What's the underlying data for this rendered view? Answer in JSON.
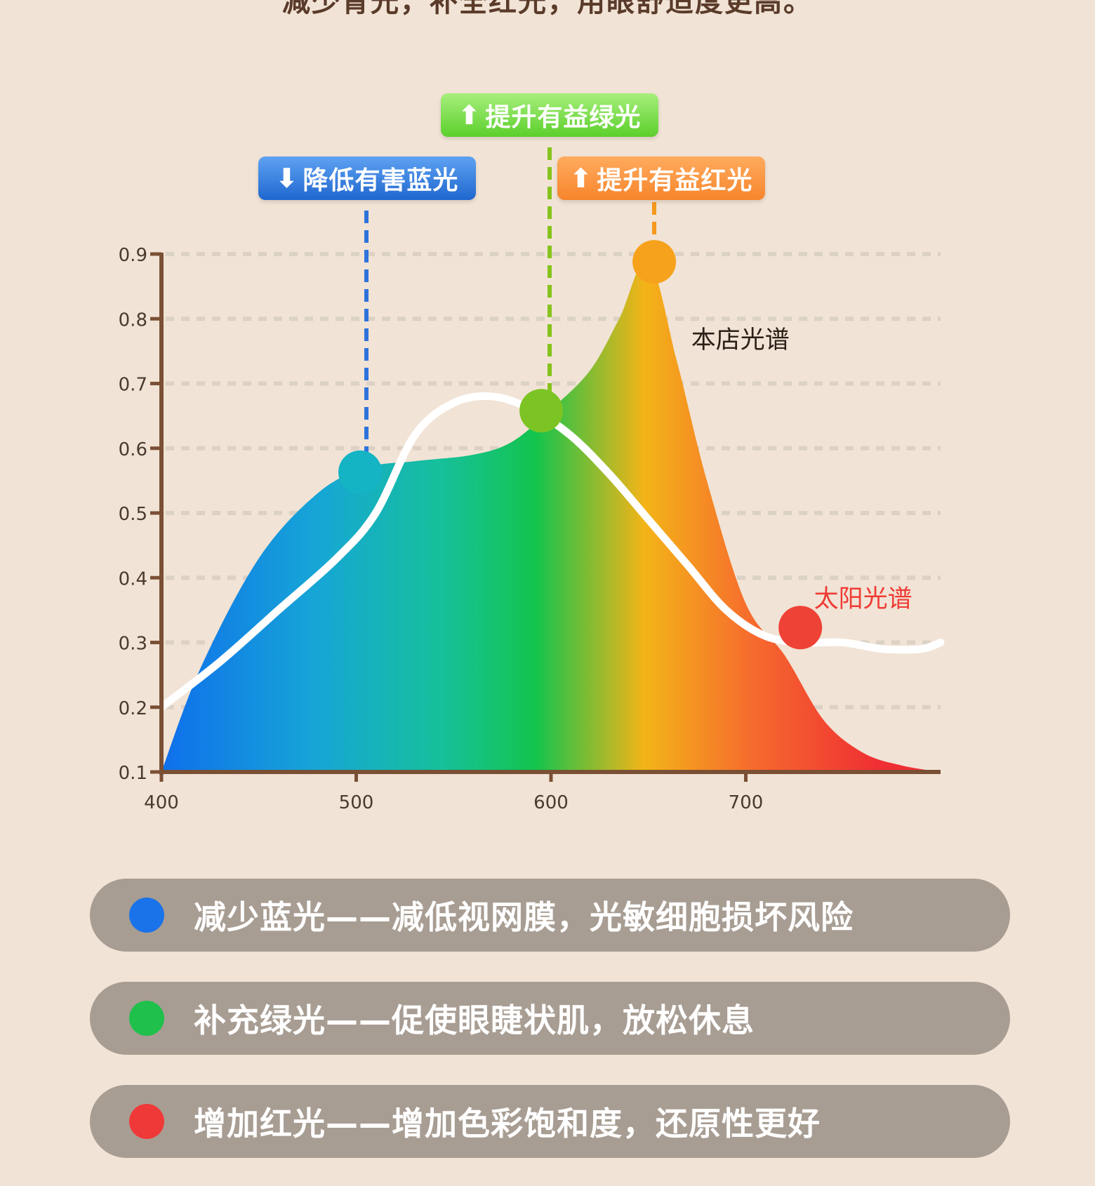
{
  "page": {
    "headline": "减少青光，补全红光，用眼舒适度更高。"
  },
  "tags": {
    "blue": "降低有害蓝光",
    "green": "提升有益绿光",
    "orange": "提升有益红光"
  },
  "chart_data": {
    "type": "area",
    "title": "",
    "xlabel": "",
    "ylabel": "",
    "x_ticks": [
      400,
      500,
      600,
      700
    ],
    "y_ticks": [
      0.1,
      0.2,
      0.3,
      0.4,
      0.5,
      0.6,
      0.7,
      0.8,
      0.9
    ],
    "xlim": [
      400,
      800
    ],
    "ylim": [
      0.1,
      0.9
    ],
    "grid": "dashed horizontal",
    "series": [
      {
        "name": "本店光谱",
        "style": "rainbow-filled-area",
        "x": [
          400,
          420,
          450,
          480,
          505,
          530,
          560,
          580,
          600,
          620,
          635,
          650,
          665,
          680,
          700,
          720,
          740,
          760,
          780,
          800
        ],
        "y": [
          0.1,
          0.26,
          0.43,
          0.53,
          0.57,
          0.58,
          0.59,
          0.61,
          0.66,
          0.72,
          0.8,
          0.89,
          0.73,
          0.55,
          0.36,
          0.28,
          0.18,
          0.13,
          0.11,
          0.1
        ]
      },
      {
        "name": "太阳光谱",
        "style": "white-line",
        "x": [
          400,
          430,
          460,
          490,
          510,
          530,
          550,
          570,
          590,
          610,
          630,
          650,
          670,
          690,
          710,
          730,
          750,
          770,
          790,
          800
        ],
        "y": [
          0.2,
          0.27,
          0.35,
          0.43,
          0.5,
          0.62,
          0.67,
          0.68,
          0.66,
          0.62,
          0.56,
          0.49,
          0.42,
          0.35,
          0.31,
          0.3,
          0.3,
          0.29,
          0.29,
          0.3
        ]
      }
    ],
    "markers": [
      {
        "x": 502,
        "y": 0.563,
        "color": "#15b4c4"
      },
      {
        "x": 595,
        "y": 0.658,
        "color": "#7cc423"
      },
      {
        "x": 653,
        "y": 0.888,
        "color": "#f7a21c"
      },
      {
        "x": 728,
        "y": 0.323,
        "color": "#ef4236"
      }
    ],
    "annotations": [
      {
        "text": "本店光谱",
        "x": 672,
        "y": 0.755,
        "color": "#2b2018"
      },
      {
        "text": "太阳光谱",
        "x": 735,
        "y": 0.355,
        "color": "#ef3b35"
      }
    ],
    "colors": {
      "axis": "#7a5035",
      "grid": "#dcd1c5",
      "spectrum": [
        "#0f6fec",
        "#16b7c4",
        "#13c44d",
        "#f4b418",
        "#f66a2e",
        "#ef2f33"
      ],
      "blue_line": "#2d73dc",
      "green_line": "#86c31c",
      "orange_line": "#f5991d"
    }
  },
  "legend_pills": [
    {
      "text": "减少蓝光——减低视网膜，光敏细胞损坏风险",
      "color": "#1a73e8"
    },
    {
      "text": "补充绿光——促使眼睫状肌，放松休息",
      "color": "#1fc04b"
    },
    {
      "text": "增加红光——增加色彩饱和度，还原性更好",
      "color": "#ef3939"
    }
  ]
}
